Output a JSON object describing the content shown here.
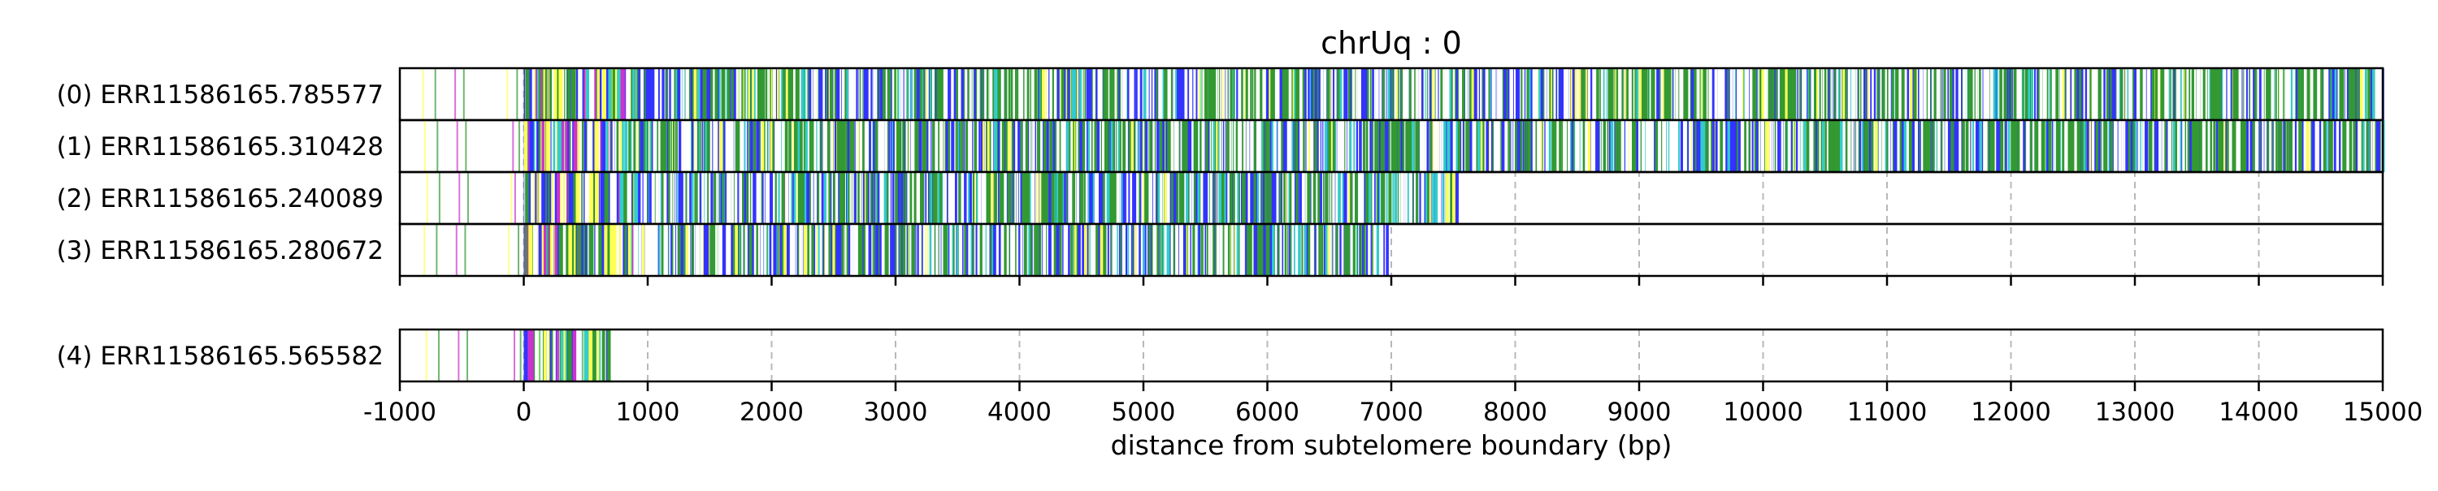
{
  "chart_data": {
    "type": "heatmap",
    "title": "chrUq : 0",
    "xlabel": "distance from subtelomere boundary (bp)",
    "ylabel": "",
    "xlim": [
      -1000,
      15000
    ],
    "xticks": [
      -1000,
      0,
      1000,
      2000,
      3000,
      4000,
      5000,
      6000,
      7000,
      8000,
      9000,
      10000,
      11000,
      12000,
      13000,
      14000,
      15000
    ],
    "xtick_labels": [
      "-1000",
      "0",
      "1000",
      "2000",
      "3000",
      "4000",
      "5000",
      "6000",
      "7000",
      "8000",
      "9000",
      "10000",
      "11000",
      "12000",
      "13000",
      "14000",
      "15000"
    ],
    "grid": "vertical dashed",
    "colors": {
      "blue": "#3333ff",
      "green": "#339933",
      "yellow": "#ffff55",
      "magenta": "#cc33cc",
      "cyan": "#33cccc",
      "white": "#ffffff",
      "outline": "#000000"
    },
    "reads": [
      {
        "label": "(0) ERR11586165.785577",
        "group": 0,
        "end": 15000,
        "green_regions": [
          [
            1700,
            2300
          ],
          [
            3700,
            4200
          ],
          [
            5800,
            6300
          ],
          [
            8800,
            9600
          ],
          [
            11800,
            12400
          ],
          [
            13200,
            13700
          ],
          [
            14100,
            14500
          ]
        ]
      },
      {
        "label": "(1) ERR11586165.310428",
        "group": 0,
        "end": 15000,
        "green_regions": [
          [
            2100,
            2500
          ],
          [
            5400,
            5800
          ],
          [
            8200,
            8600
          ],
          [
            10300,
            10700
          ],
          [
            12200,
            12600
          ],
          [
            13400,
            13900
          ]
        ]
      },
      {
        "label": "(2) ERR11586165.240089",
        "group": 0,
        "end": 7530,
        "green_regions": [
          [
            6800,
            7100
          ]
        ]
      },
      {
        "label": "(3) ERR11586165.280672",
        "group": 0,
        "end": 6960,
        "green_regions": []
      },
      {
        "label": "(4) ERR11586165.565582",
        "group": 1,
        "end": 680,
        "green_regions": []
      }
    ]
  }
}
